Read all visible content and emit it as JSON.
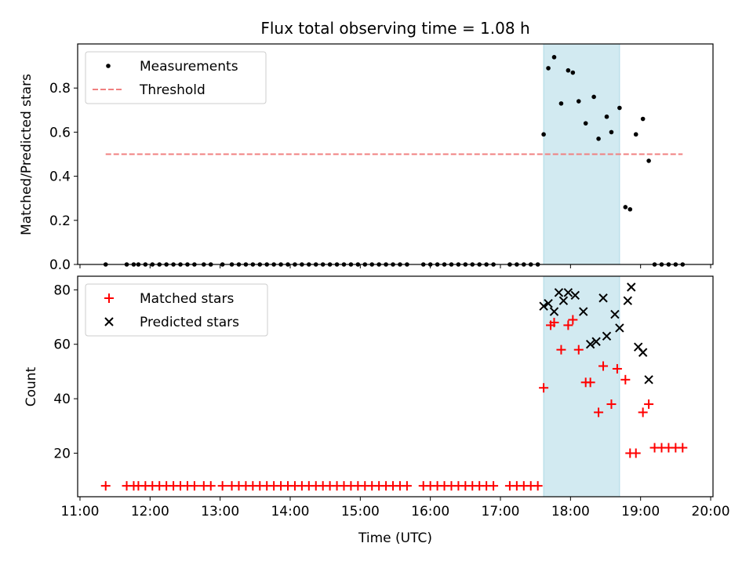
{
  "chart_data": [
    {
      "type": "scatter",
      "title": "Flux total observing time = 1.08 h",
      "xlabel": "",
      "ylabel": "Matched/Predicted stars",
      "xlim": [
        "10:58",
        "20:02"
      ],
      "ylim": [
        0,
        1.0
      ],
      "yticks": [
        0.0,
        0.2,
        0.4,
        0.6,
        0.8
      ],
      "ytick_labels": [
        "0.0",
        "0.2",
        "0.4",
        "0.6",
        "0.8"
      ],
      "highlight_span": [
        "17:37",
        "18:42"
      ],
      "legend_position": "upper-left",
      "series": [
        {
          "name": "Measurements",
          "marker": "dot",
          "color": "#000000",
          "x": [
            "11:22",
            "11:40",
            "11:46",
            "11:50",
            "11:56",
            "12:02",
            "12:08",
            "12:14",
            "12:20",
            "12:26",
            "12:32",
            "12:38",
            "12:46",
            "12:52",
            "13:02",
            "13:10",
            "13:16",
            "13:22",
            "13:28",
            "13:34",
            "13:40",
            "13:46",
            "13:52",
            "13:58",
            "14:04",
            "14:10",
            "14:16",
            "14:22",
            "14:28",
            "14:34",
            "14:40",
            "14:46",
            "14:52",
            "14:58",
            "15:04",
            "15:10",
            "15:16",
            "15:22",
            "15:28",
            "15:34",
            "15:40",
            "15:54",
            "16:00",
            "16:06",
            "16:12",
            "16:18",
            "16:24",
            "16:30",
            "16:36",
            "16:42",
            "16:48",
            "16:54",
            "17:08",
            "17:14",
            "17:20",
            "17:26",
            "17:32",
            "17:37",
            "17:41",
            "17:46",
            "17:52",
            "17:58",
            "18:02",
            "18:07",
            "18:13",
            "18:20",
            "18:24",
            "18:31",
            "18:35",
            "18:42",
            "18:47",
            "18:51",
            "18:56",
            "19:02",
            "19:07",
            "19:12",
            "19:18",
            "19:24",
            "19:30",
            "19:36"
          ],
          "y": [
            0,
            0,
            0,
            0,
            0,
            0,
            0,
            0,
            0,
            0,
            0,
            0,
            0,
            0,
            0,
            0,
            0,
            0,
            0,
            0,
            0,
            0,
            0,
            0,
            0,
            0,
            0,
            0,
            0,
            0,
            0,
            0,
            0,
            0,
            0,
            0,
            0,
            0,
            0,
            0,
            0,
            0,
            0,
            0,
            0,
            0,
            0,
            0,
            0,
            0,
            0,
            0,
            0,
            0,
            0,
            0,
            0,
            0.59,
            0.89,
            0.94,
            0.73,
            0.88,
            0.87,
            0.74,
            0.64,
            0.76,
            0.57,
            0.67,
            0.6,
            0.71,
            0.26,
            0.25,
            0.59,
            0.66,
            0.47,
            0,
            0,
            0,
            0,
            0
          ]
        },
        {
          "name": "Threshold",
          "marker": "dashed-line",
          "color": "#f08080",
          "x": [
            "11:22",
            "19:36"
          ],
          "y": [
            0.5,
            0.5
          ]
        }
      ]
    },
    {
      "type": "scatter",
      "title": "",
      "xlabel": "Time (UTC)",
      "ylabel": "Count",
      "xlim": [
        "10:58",
        "20:02"
      ],
      "ylim": [
        4,
        85
      ],
      "yticks": [
        20,
        40,
        60,
        80
      ],
      "ytick_labels": [
        "20",
        "40",
        "60",
        "80"
      ],
      "xticks": [
        "11:00",
        "12:00",
        "13:00",
        "14:00",
        "15:00",
        "16:00",
        "17:00",
        "18:00",
        "19:00",
        "20:00"
      ],
      "highlight_span": [
        "17:37",
        "18:42"
      ],
      "legend_position": "upper-left",
      "series": [
        {
          "name": "Matched stars",
          "marker": "plus",
          "color": "#ff0000",
          "x": [
            "11:22",
            "11:40",
            "11:46",
            "11:50",
            "11:56",
            "12:02",
            "12:08",
            "12:14",
            "12:20",
            "12:26",
            "12:32",
            "12:38",
            "12:46",
            "12:52",
            "13:02",
            "13:10",
            "13:16",
            "13:22",
            "13:28",
            "13:34",
            "13:40",
            "13:46",
            "13:52",
            "13:58",
            "14:04",
            "14:10",
            "14:16",
            "14:22",
            "14:28",
            "14:34",
            "14:40",
            "14:46",
            "14:52",
            "14:58",
            "15:04",
            "15:10",
            "15:16",
            "15:22",
            "15:28",
            "15:34",
            "15:40",
            "15:54",
            "16:00",
            "16:06",
            "16:12",
            "16:18",
            "16:24",
            "16:30",
            "16:36",
            "16:42",
            "16:48",
            "16:54",
            "17:08",
            "17:14",
            "17:20",
            "17:26",
            "17:32",
            "17:37",
            "17:43",
            "17:46",
            "17:52",
            "17:58",
            "18:02",
            "18:07",
            "18:13",
            "18:17",
            "18:24",
            "18:28",
            "18:35",
            "18:40",
            "18:47",
            "18:51",
            "18:56",
            "19:02",
            "19:07",
            "19:12",
            "19:18",
            "19:24",
            "19:30",
            "19:36"
          ],
          "y": [
            8,
            8,
            8,
            8,
            8,
            8,
            8,
            8,
            8,
            8,
            8,
            8,
            8,
            8,
            8,
            8,
            8,
            8,
            8,
            8,
            8,
            8,
            8,
            8,
            8,
            8,
            8,
            8,
            8,
            8,
            8,
            8,
            8,
            8,
            8,
            8,
            8,
            8,
            8,
            8,
            8,
            8,
            8,
            8,
            8,
            8,
            8,
            8,
            8,
            8,
            8,
            8,
            8,
            8,
            8,
            8,
            8,
            44,
            67,
            68,
            58,
            67,
            69,
            58,
            46,
            46,
            35,
            52,
            38,
            51,
            47,
            20,
            20,
            35,
            38,
            22,
            22,
            22,
            22,
            22
          ]
        },
        {
          "name": "Predicted stars",
          "marker": "x",
          "color": "#000000",
          "x": [
            "17:37",
            "17:41",
            "17:46",
            "17:50",
            "17:54",
            "17:58",
            "18:04",
            "18:11",
            "18:17",
            "18:22",
            "18:28",
            "18:31",
            "18:38",
            "18:42",
            "18:49",
            "18:52",
            "18:58",
            "19:02",
            "19:07"
          ],
          "y": [
            74,
            75,
            72,
            79,
            76,
            79,
            78,
            72,
            60,
            61,
            77,
            63,
            71,
            66,
            76,
            81,
            59,
            57,
            47
          ]
        }
      ]
    }
  ]
}
